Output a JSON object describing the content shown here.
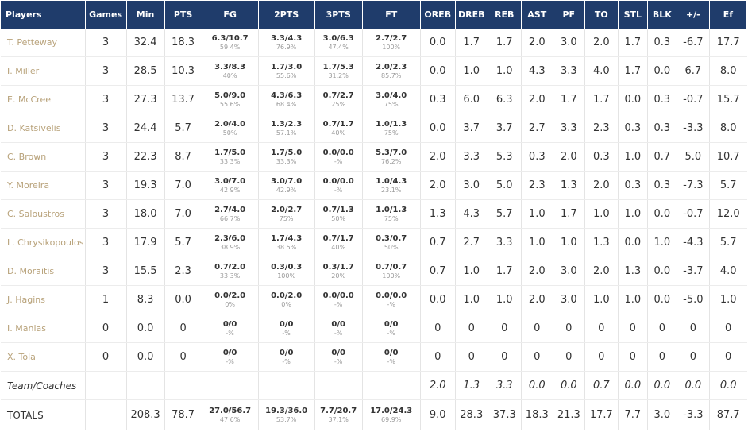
{
  "headers": [
    "Players",
    "Games",
    "Min",
    "PTS",
    "FG",
    "2PTS",
    "3PTS",
    "FT",
    "OREB",
    "DREB",
    "REB",
    "AST",
    "PF",
    "TO",
    "STL",
    "BLK",
    "+/-",
    "Ef"
  ],
  "players": [
    {
      "name": "T. Petteway",
      "games": "3",
      "min": "32.4",
      "pts": "18.3",
      "fg": "6.3/10.7",
      "fg_pct": "59.4%",
      "p2": "3.3/4.3",
      "p2_pct": "76.9%",
      "p3": "3.0/6.3",
      "p3_pct": "47.4%",
      "ft": "2.7/2.7",
      "ft_pct": "100%",
      "oreb": "0.0",
      "dreb": "1.7",
      "reb": "1.7",
      "ast": "2.0",
      "pf": "3.0",
      "to": "2.0",
      "stl": "1.7",
      "blk": "0.3",
      "pm": "-6.7",
      "ef": "17.7"
    },
    {
      "name": "I. Miller",
      "games": "3",
      "min": "28.5",
      "pts": "10.3",
      "fg": "3.3/8.3",
      "fg_pct": "40%",
      "p2": "1.7/3.0",
      "p2_pct": "55.6%",
      "p3": "1.7/5.3",
      "p3_pct": "31.2%",
      "ft": "2.0/2.3",
      "ft_pct": "85.7%",
      "oreb": "0.0",
      "dreb": "1.0",
      "reb": "1.0",
      "ast": "4.3",
      "pf": "3.3",
      "to": "4.0",
      "stl": "1.7",
      "blk": "0.0",
      "pm": "6.7",
      "ef": "8.0"
    },
    {
      "name": "E. McCree",
      "games": "3",
      "min": "27.3",
      "pts": "13.7",
      "fg": "5.0/9.0",
      "fg_pct": "55.6%",
      "p2": "4.3/6.3",
      "p2_pct": "68.4%",
      "p3": "0.7/2.7",
      "p3_pct": "25%",
      "ft": "3.0/4.0",
      "ft_pct": "75%",
      "oreb": "0.3",
      "dreb": "6.0",
      "reb": "6.3",
      "ast": "2.0",
      "pf": "1.7",
      "to": "1.7",
      "stl": "0.0",
      "blk": "0.3",
      "pm": "-0.7",
      "ef": "15.7"
    },
    {
      "name": "D. Katsivelis",
      "games": "3",
      "min": "24.4",
      "pts": "5.7",
      "fg": "2.0/4.0",
      "fg_pct": "50%",
      "p2": "1.3/2.3",
      "p2_pct": "57.1%",
      "p3": "0.7/1.7",
      "p3_pct": "40%",
      "ft": "1.0/1.3",
      "ft_pct": "75%",
      "oreb": "0.0",
      "dreb": "3.7",
      "reb": "3.7",
      "ast": "2.7",
      "pf": "3.3",
      "to": "2.3",
      "stl": "0.3",
      "blk": "0.3",
      "pm": "-3.3",
      "ef": "8.0"
    },
    {
      "name": "C. Brown",
      "games": "3",
      "min": "22.3",
      "pts": "8.7",
      "fg": "1.7/5.0",
      "fg_pct": "33.3%",
      "p2": "1.7/5.0",
      "p2_pct": "33.3%",
      "p3": "0.0/0.0",
      "p3_pct": "-%",
      "ft": "5.3/7.0",
      "ft_pct": "76.2%",
      "oreb": "2.0",
      "dreb": "3.3",
      "reb": "5.3",
      "ast": "0.3",
      "pf": "2.0",
      "to": "0.3",
      "stl": "1.0",
      "blk": "0.7",
      "pm": "5.0",
      "ef": "10.7"
    },
    {
      "name": "Y. Moreira",
      "games": "3",
      "min": "19.3",
      "pts": "7.0",
      "fg": "3.0/7.0",
      "fg_pct": "42.9%",
      "p2": "3.0/7.0",
      "p2_pct": "42.9%",
      "p3": "0.0/0.0",
      "p3_pct": "-%",
      "ft": "1.0/4.3",
      "ft_pct": "23.1%",
      "oreb": "2.0",
      "dreb": "3.0",
      "reb": "5.0",
      "ast": "2.3",
      "pf": "1.3",
      "to": "2.0",
      "stl": "0.3",
      "blk": "0.3",
      "pm": "-7.3",
      "ef": "5.7"
    },
    {
      "name": "C. Saloustros",
      "games": "3",
      "min": "18.0",
      "pts": "7.0",
      "fg": "2.7/4.0",
      "fg_pct": "66.7%",
      "p2": "2.0/2.7",
      "p2_pct": "75%",
      "p3": "0.7/1.3",
      "p3_pct": "50%",
      "ft": "1.0/1.3",
      "ft_pct": "75%",
      "oreb": "1.3",
      "dreb": "4.3",
      "reb": "5.7",
      "ast": "1.0",
      "pf": "1.7",
      "to": "1.0",
      "stl": "1.0",
      "blk": "0.0",
      "pm": "-0.7",
      "ef": "12.0"
    },
    {
      "name": "L. Chrysikopoulos",
      "games": "3",
      "min": "17.9",
      "pts": "5.7",
      "fg": "2.3/6.0",
      "fg_pct": "38.9%",
      "p2": "1.7/4.3",
      "p2_pct": "38.5%",
      "p3": "0.7/1.7",
      "p3_pct": "40%",
      "ft": "0.3/0.7",
      "ft_pct": "50%",
      "oreb": "0.7",
      "dreb": "2.7",
      "reb": "3.3",
      "ast": "1.0",
      "pf": "1.0",
      "to": "1.3",
      "stl": "0.0",
      "blk": "1.0",
      "pm": "-4.3",
      "ef": "5.7"
    },
    {
      "name": "D. Moraitis",
      "games": "3",
      "min": "15.5",
      "pts": "2.3",
      "fg": "0.7/2.0",
      "fg_pct": "33.3%",
      "p2": "0.3/0.3",
      "p2_pct": "100%",
      "p3": "0.3/1.7",
      "p3_pct": "20%",
      "ft": "0.7/0.7",
      "ft_pct": "100%",
      "oreb": "0.7",
      "dreb": "1.0",
      "reb": "1.7",
      "ast": "2.0",
      "pf": "3.0",
      "to": "2.0",
      "stl": "1.3",
      "blk": "0.0",
      "pm": "-3.7",
      "ef": "4.0"
    },
    {
      "name": "J. Hagins",
      "games": "1",
      "min": "8.3",
      "pts": "0.0",
      "fg": "0.0/2.0",
      "fg_pct": "0%",
      "p2": "0.0/2.0",
      "p2_pct": "0%",
      "p3": "0.0/0.0",
      "p3_pct": "-%",
      "ft": "0.0/0.0",
      "ft_pct": "-%",
      "oreb": "0.0",
      "dreb": "1.0",
      "reb": "1.0",
      "ast": "2.0",
      "pf": "3.0",
      "to": "1.0",
      "stl": "1.0",
      "blk": "0.0",
      "pm": "-5.0",
      "ef": "1.0"
    },
    {
      "name": "I. Manias",
      "games": "0",
      "min": "0.0",
      "pts": "0",
      "fg": "0/0",
      "fg_pct": "-%",
      "p2": "0/0",
      "p2_pct": "-%",
      "p3": "0/0",
      "p3_pct": "-%",
      "ft": "0/0",
      "ft_pct": "-%",
      "oreb": "0",
      "dreb": "0",
      "reb": "0",
      "ast": "0",
      "pf": "0",
      "to": "0",
      "stl": "0",
      "blk": "0",
      "pm": "0",
      "ef": "0"
    },
    {
      "name": "X. Tola",
      "games": "0",
      "min": "0.0",
      "pts": "0",
      "fg": "0/0",
      "fg_pct": "-%",
      "p2": "0/0",
      "p2_pct": "-%",
      "p3": "0/0",
      "p3_pct": "-%",
      "ft": "0/0",
      "ft_pct": "-%",
      "oreb": "0",
      "dreb": "0",
      "reb": "0",
      "ast": "0",
      "pf": "0",
      "to": "0",
      "stl": "0",
      "blk": "0",
      "pm": "0",
      "ef": "0"
    }
  ],
  "team": {
    "name": "Team/Coaches",
    "oreb": "2.0",
    "dreb": "1.3",
    "reb": "3.3",
    "ast": "0.0",
    "pf": "0.0",
    "to": "0.7",
    "stl": "0.0",
    "blk": "0.0",
    "pm": "0.0",
    "ef": "0.0"
  },
  "totals": {
    "name": "TOTALS",
    "min": "208.3",
    "pts": "78.7",
    "fg": "27.0/56.7",
    "fg_pct": "47.6%",
    "p2": "19.3/36.0",
    "p2_pct": "53.7%",
    "p3": "7.7/20.7",
    "p3_pct": "37.1%",
    "ft": "17.0/24.3",
    "ft_pct": "69.9%",
    "oreb": "9.0",
    "dreb": "28.3",
    "reb": "37.3",
    "ast": "18.3",
    "pf": "21.3",
    "to": "17.7",
    "stl": "7.7",
    "blk": "3.0",
    "pm": "-3.3",
    "ef": "87.7"
  }
}
